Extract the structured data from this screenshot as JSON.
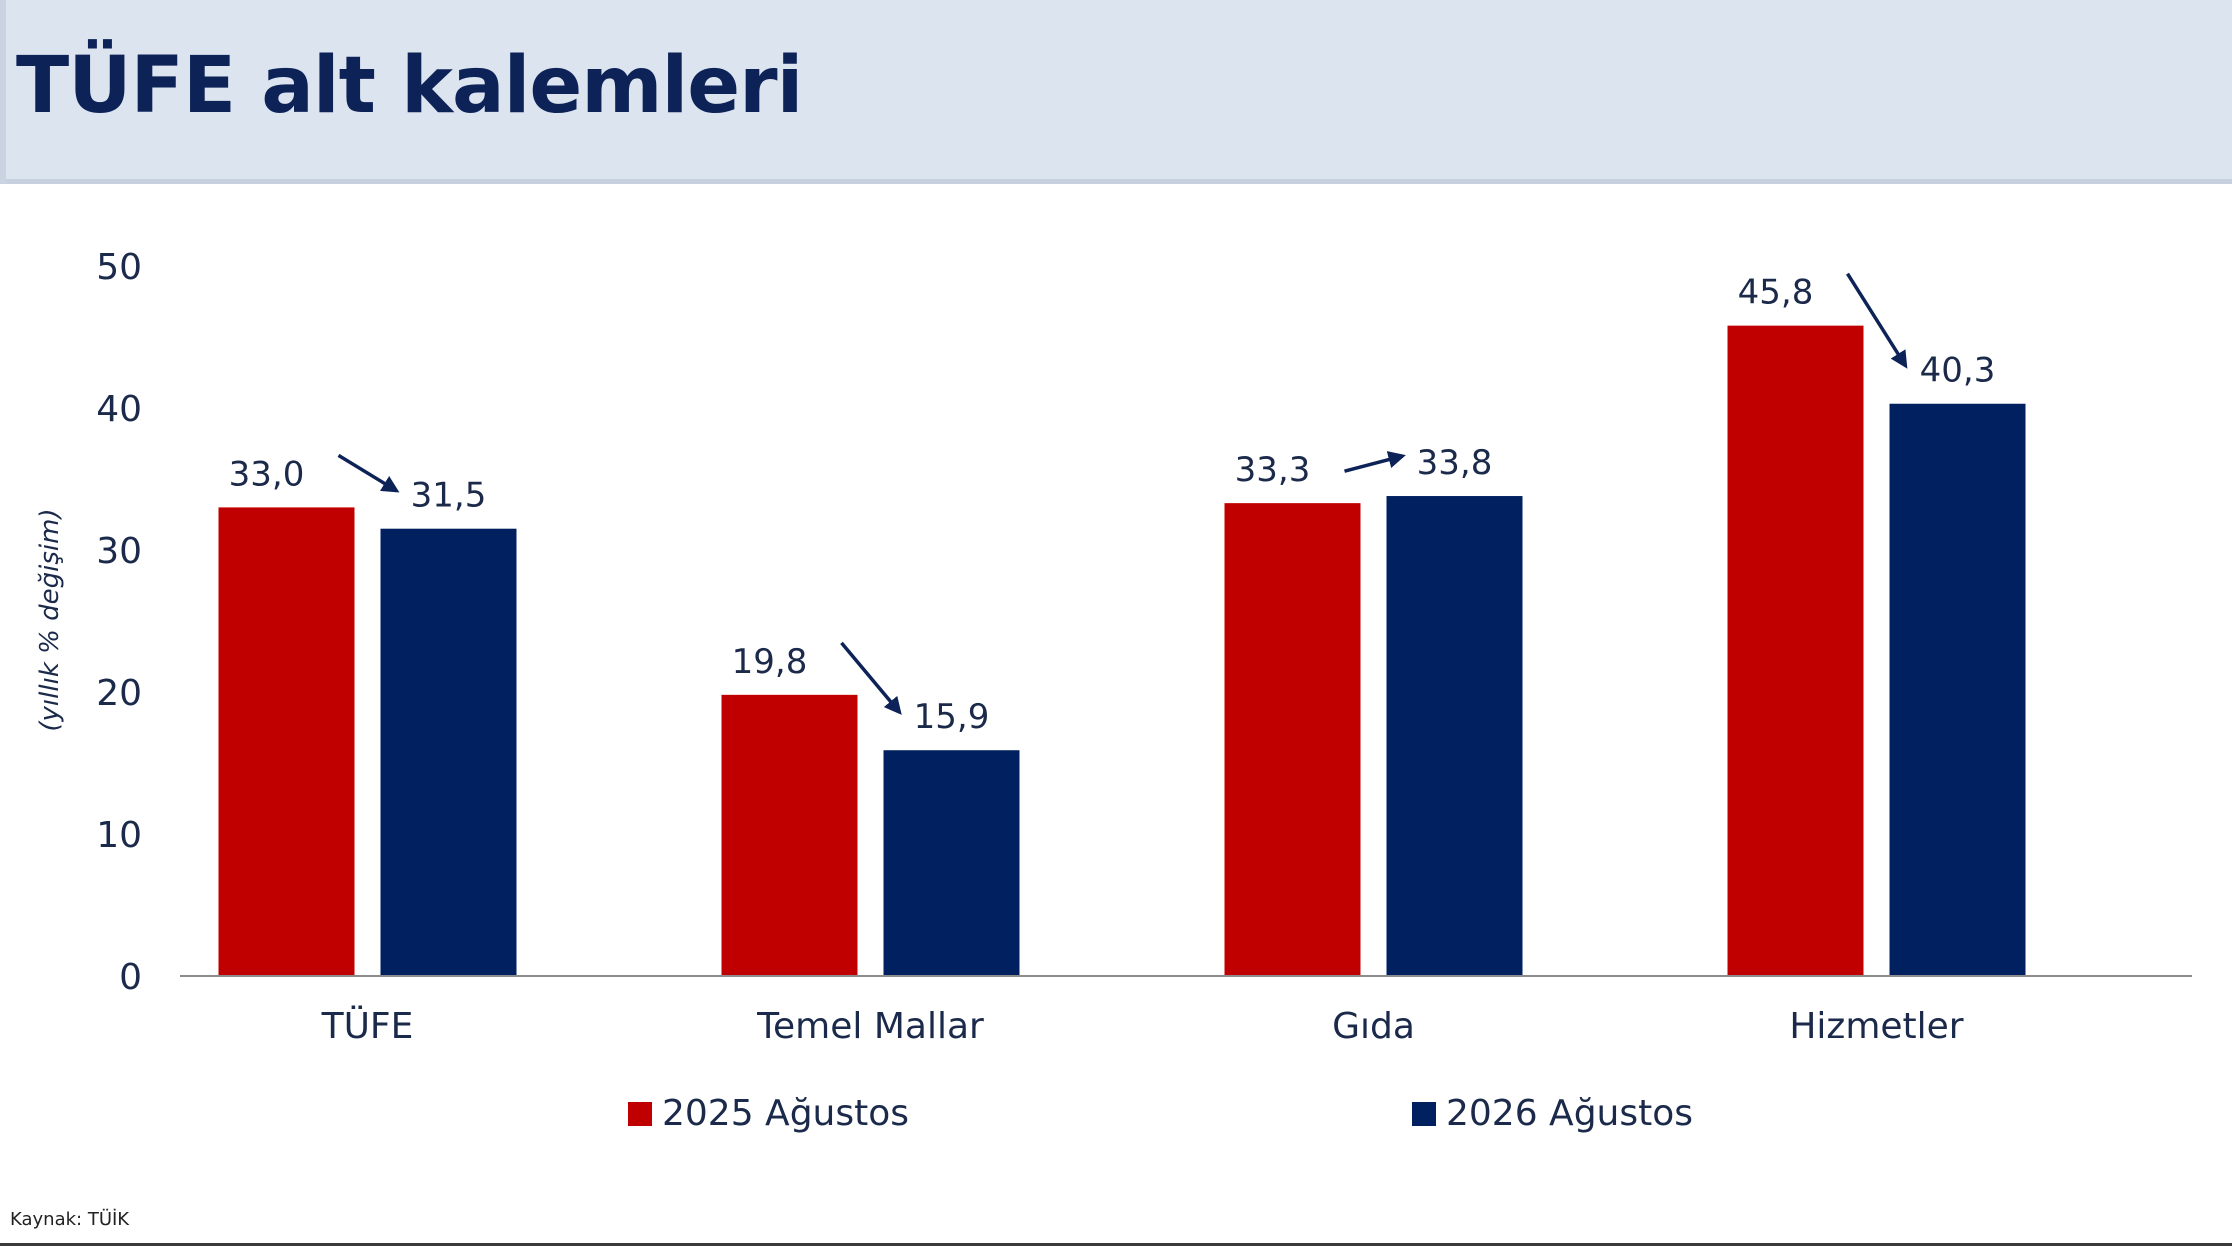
{
  "header": {
    "title": "TÜFE alt kalemleri"
  },
  "source": "Kaynak: TÜİK",
  "colors": {
    "series_2025": "#c00000",
    "series_2026": "#002060",
    "text": "#1b2a4a",
    "arrow": "#0d2257",
    "header_bg": "#dce4f0"
  },
  "chart_data": {
    "type": "bar",
    "categories": [
      "TÜFE",
      "Temel Mallar",
      "Gıda",
      "Hizmetler"
    ],
    "series": [
      {
        "name": "2025 Ağustos",
        "values": [
          33.0,
          19.8,
          33.3,
          45.8
        ],
        "labels": [
          "33,0",
          "19,8",
          "33,3",
          "45,8"
        ],
        "color": "#c00000"
      },
      {
        "name": "2026 Ağustos",
        "values": [
          31.5,
          15.9,
          33.8,
          40.3
        ],
        "labels": [
          "31,5",
          "15,9",
          "33,8",
          "40,3"
        ],
        "color": "#002060"
      }
    ],
    "ylabel": "(yıllık % değişim)",
    "ylim": [
      0,
      50
    ],
    "yticks": [
      "0",
      "10",
      "20",
      "30",
      "40",
      "50"
    ],
    "grid": false,
    "legend": "bottom",
    "annotations": "arrows from 2025 Ağustos label to 2026 Ağustos label in each category"
  }
}
